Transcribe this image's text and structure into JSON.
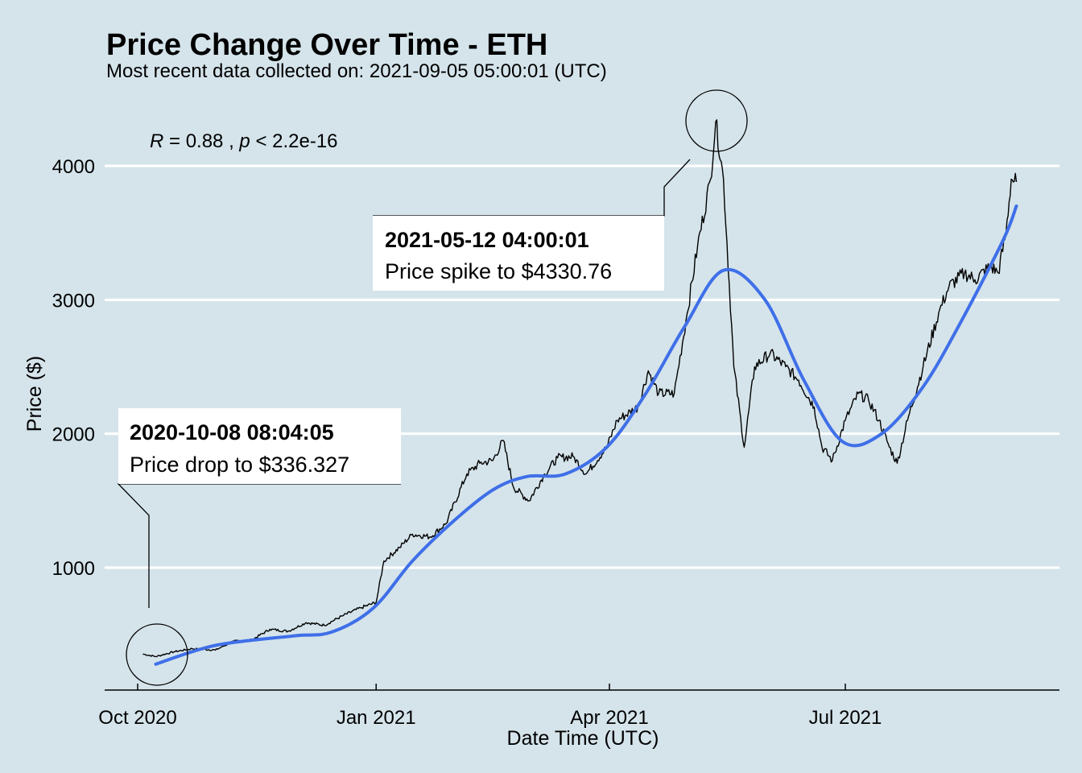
{
  "chart_data": {
    "type": "line",
    "title": "Price Change Over Time - ETH",
    "subtitle": "Most recent data collected on: 2021-09-05 05:00:01 (UTC)",
    "xlabel": "Date Time (UTC)",
    "ylabel": "Price ($)",
    "x_ticks": [
      "Oct 2020",
      "Jan 2021",
      "Apr 2021",
      "Jul 2021"
    ],
    "y_ticks": [
      1000,
      2000,
      3000,
      4000
    ],
    "stat": {
      "r_label": "R",
      "r_value": " = 0.88 , ",
      "p_label": "p",
      "p_value": " < 2.2e-16"
    },
    "grid": "horizontal",
    "colors": {
      "background": "#d5e4eb",
      "price_line": "#000000",
      "trend_line": "#3f6fe8",
      "grid": "#ffffff"
    },
    "series": [
      {
        "kind": "price",
        "points": [
          [
            "2020-10-03",
            355
          ],
          [
            "2020-10-08",
            336.327
          ],
          [
            "2020-10-15",
            372
          ],
          [
            "2020-10-22",
            395
          ],
          [
            "2020-10-31",
            385
          ],
          [
            "2020-11-07",
            450
          ],
          [
            "2020-11-14",
            460
          ],
          [
            "2020-11-21",
            540
          ],
          [
            "2020-11-28",
            525
          ],
          [
            "2020-12-05",
            590
          ],
          [
            "2020-12-12",
            570
          ],
          [
            "2020-12-19",
            640
          ],
          [
            "2020-12-26",
            700
          ],
          [
            "2021-01-01",
            740
          ],
          [
            "2021-01-04",
            1050
          ],
          [
            "2021-01-10",
            1150
          ],
          [
            "2021-01-15",
            1250
          ],
          [
            "2021-01-22",
            1230
          ],
          [
            "2021-01-28",
            1330
          ],
          [
            "2021-02-05",
            1700
          ],
          [
            "2021-02-10",
            1780
          ],
          [
            "2021-02-15",
            1800
          ],
          [
            "2021-02-19",
            1950
          ],
          [
            "2021-02-23",
            1600
          ],
          [
            "2021-03-01",
            1500
          ],
          [
            "2021-03-07",
            1700
          ],
          [
            "2021-03-12",
            1820
          ],
          [
            "2021-03-18",
            1830
          ],
          [
            "2021-03-23",
            1700
          ],
          [
            "2021-03-31",
            1900
          ],
          [
            "2021-04-04",
            2100
          ],
          [
            "2021-04-12",
            2200
          ],
          [
            "2021-04-16",
            2470
          ],
          [
            "2021-04-20",
            2300
          ],
          [
            "2021-04-26",
            2300
          ],
          [
            "2021-05-01",
            2900
          ],
          [
            "2021-05-05",
            3400
          ],
          [
            "2021-05-10",
            3900
          ],
          [
            "2021-05-12",
            4330.76
          ],
          [
            "2021-05-15",
            3900
          ],
          [
            "2021-05-19",
            2500
          ],
          [
            "2021-05-23",
            1900
          ],
          [
            "2021-05-27",
            2500
          ],
          [
            "2021-06-02",
            2600
          ],
          [
            "2021-06-08",
            2500
          ],
          [
            "2021-06-13",
            2400
          ],
          [
            "2021-06-19",
            2200
          ],
          [
            "2021-06-22",
            1900
          ],
          [
            "2021-06-26",
            1800
          ],
          [
            "2021-07-01",
            2100
          ],
          [
            "2021-07-06",
            2300
          ],
          [
            "2021-07-10",
            2250
          ],
          [
            "2021-07-14",
            2100
          ],
          [
            "2021-07-18",
            1900
          ],
          [
            "2021-07-21",
            1780
          ],
          [
            "2021-07-25",
            2100
          ],
          [
            "2021-07-31",
            2500
          ],
          [
            "2021-08-06",
            2900
          ],
          [
            "2021-08-10",
            3100
          ],
          [
            "2021-08-16",
            3200
          ],
          [
            "2021-08-20",
            3150
          ],
          [
            "2021-08-26",
            3250
          ],
          [
            "2021-08-29",
            3200
          ],
          [
            "2021-09-01",
            3500
          ],
          [
            "2021-09-03",
            3900
          ],
          [
            "2021-09-05",
            3880
          ]
        ]
      },
      {
        "kind": "trend",
        "points": [
          [
            "2020-10-08",
            280
          ],
          [
            "2020-10-31",
            420
          ],
          [
            "2020-11-30",
            490
          ],
          [
            "2020-12-15",
            520
          ],
          [
            "2020-12-31",
            700
          ],
          [
            "2021-01-15",
            1050
          ],
          [
            "2021-01-31",
            1350
          ],
          [
            "2021-02-15",
            1580
          ],
          [
            "2021-02-28",
            1680
          ],
          [
            "2021-03-15",
            1700
          ],
          [
            "2021-03-31",
            1900
          ],
          [
            "2021-04-15",
            2300
          ],
          [
            "2021-04-30",
            2800
          ],
          [
            "2021-05-15",
            3220
          ],
          [
            "2021-05-31",
            3000
          ],
          [
            "2021-06-15",
            2400
          ],
          [
            "2021-06-30",
            1940
          ],
          [
            "2021-07-15",
            2000
          ],
          [
            "2021-07-31",
            2350
          ],
          [
            "2021-08-15",
            2850
          ],
          [
            "2021-08-31",
            3450
          ],
          [
            "2021-09-05",
            3700
          ]
        ]
      }
    ],
    "annotations": [
      {
        "date": "2020-10-08 08:04:05",
        "label": "Price drop to $336.327",
        "value": 336.327
      },
      {
        "date": "2021-05-12 04:00:01",
        "label": "Price spike to $4330.76",
        "value": 4330.76
      }
    ]
  }
}
